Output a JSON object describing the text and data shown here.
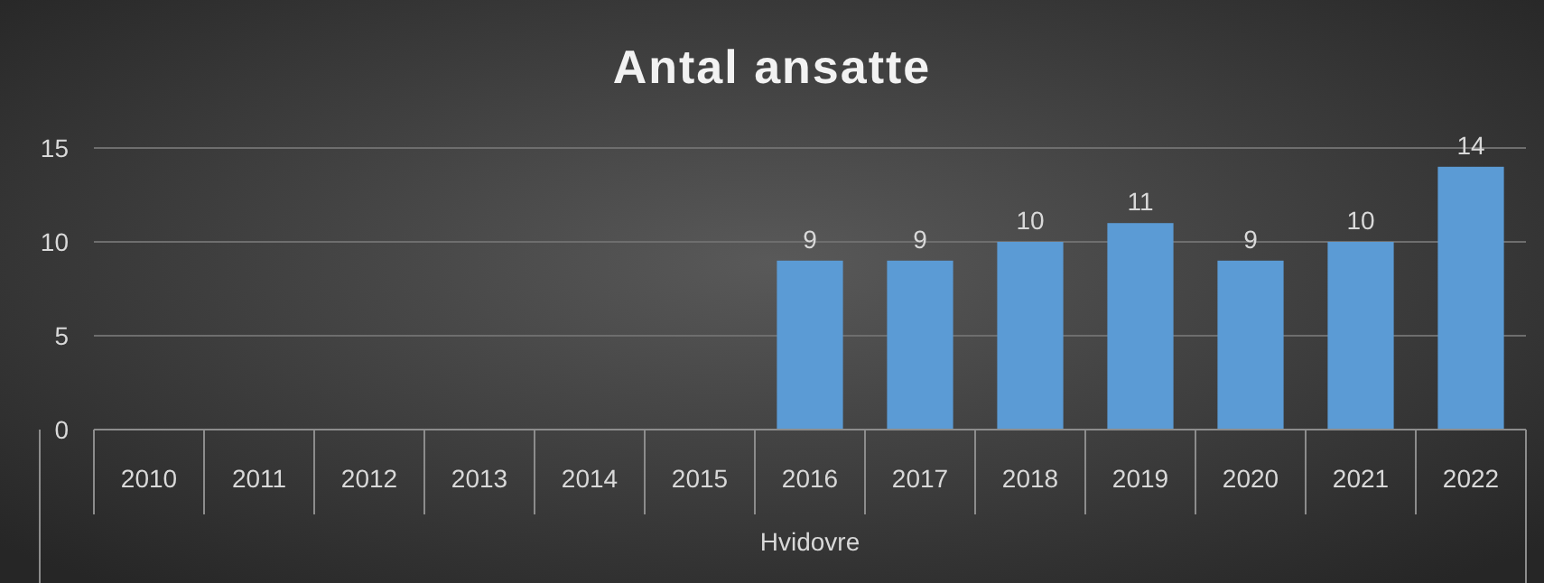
{
  "chart_data": {
    "type": "bar",
    "title": "Antal ansatte",
    "xlabel": "Hvidovre",
    "categories": [
      "2010",
      "2011",
      "2012",
      "2013",
      "2014",
      "2015",
      "2016",
      "2017",
      "2018",
      "2019",
      "2020",
      "2021",
      "2022"
    ],
    "values": [
      null,
      null,
      null,
      null,
      null,
      null,
      9,
      9,
      10,
      11,
      9,
      10,
      14
    ],
    "color": "#5b9bd5",
    "ylim": [
      0,
      15
    ],
    "yticks": [
      0,
      5,
      10,
      15
    ],
    "grid": "y",
    "data_labels": true
  }
}
